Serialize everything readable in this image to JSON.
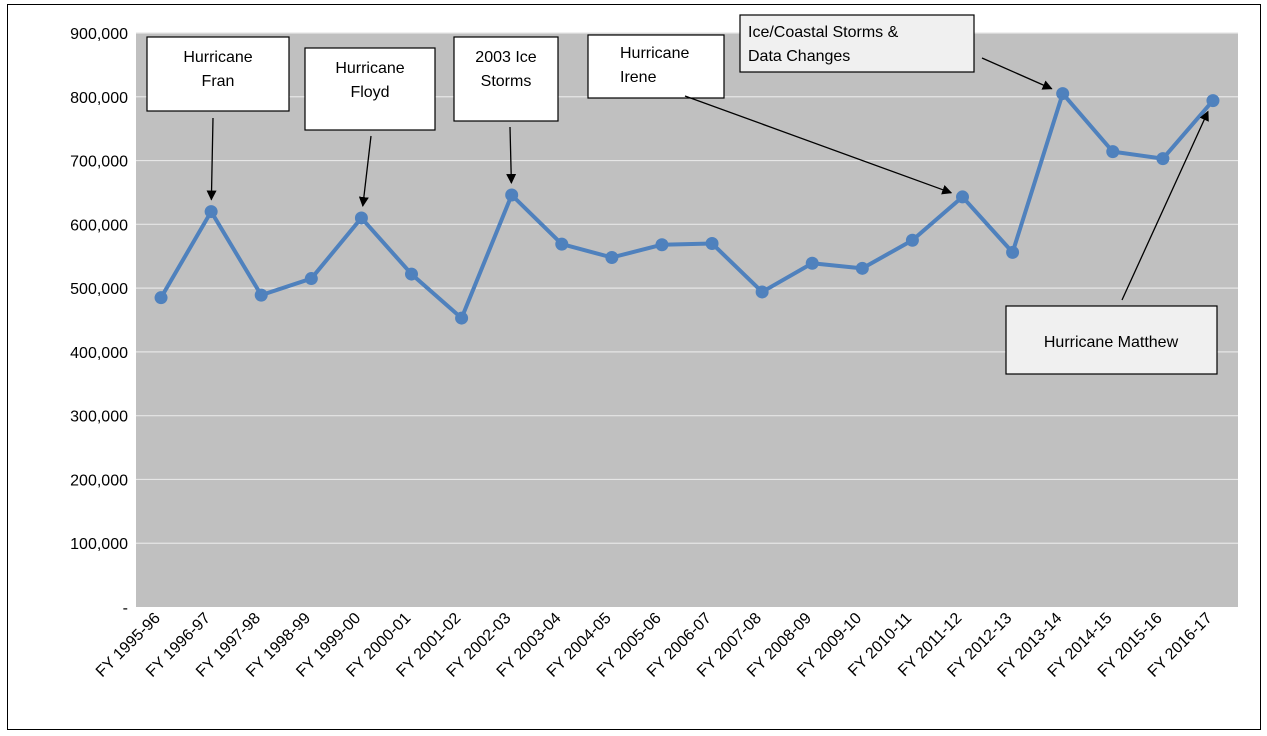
{
  "chart_data": {
    "type": "line",
    "title": "",
    "xlabel": "",
    "ylabel": "",
    "ylim": [
      0,
      900000
    ],
    "y_ticks": [
      {
        "value": 900000,
        "label": "900,000"
      },
      {
        "value": 800000,
        "label": "800,000"
      },
      {
        "value": 700000,
        "label": "700,000"
      },
      {
        "value": 600000,
        "label": "600,000"
      },
      {
        "value": 500000,
        "label": "500,000"
      },
      {
        "value": 400000,
        "label": "400,000"
      },
      {
        "value": 300000,
        "label": "300,000"
      },
      {
        "value": 200000,
        "label": "200,000"
      },
      {
        "value": 100000,
        "label": "100,000"
      },
      {
        "value": 0,
        "label": "-"
      }
    ],
    "grid": true,
    "colors": {
      "plot_background": "#c0c0c0",
      "line": "#4f81bd",
      "gridline": "#e6e6e6"
    },
    "categories": [
      "FY 1995-96",
      "FY 1996-97",
      "FY 1997-98",
      "FY 1998-99",
      "FY 1999-00",
      "FY 2000-01",
      "FY 2001-02",
      "FY 2002-03",
      "FY 2003-04",
      "FY 2004-05",
      "FY 2005-06",
      "FY 2006-07",
      "FY 2007-08",
      "FY 2008-09",
      "FY 2009-10",
      "FY 2010-11",
      "FY 2011-12",
      "FY 2012-13",
      "FY 2013-14",
      "FY 2014-15",
      "FY 2015-16",
      "FY 2016-17"
    ],
    "series": [
      {
        "values": [
          485000,
          620000,
          489000,
          515000,
          610000,
          522000,
          453000,
          646000,
          569000,
          548000,
          568000,
          570000,
          494000,
          539000,
          531000,
          575000,
          643000,
          556000,
          805000,
          714000,
          703000,
          794000
        ]
      }
    ],
    "annotations": [
      {
        "lines": [
          "Hurricane",
          "Fran"
        ],
        "target": "FY 1996-97"
      },
      {
        "lines": [
          "Hurricane",
          "Floyd"
        ],
        "target": "FY 1999-00"
      },
      {
        "lines": [
          "2003 Ice",
          "Storms"
        ],
        "target": "FY 2002-03"
      },
      {
        "lines": [
          "Hurricane",
          "Irene"
        ],
        "target": "FY 2011-12"
      },
      {
        "lines": [
          "Ice/Coastal Storms &",
          "Data Changes"
        ],
        "target": "FY 2013-14"
      },
      {
        "lines": [
          "Hurricane Matthew"
        ],
        "target": "FY 2016-17"
      }
    ]
  }
}
